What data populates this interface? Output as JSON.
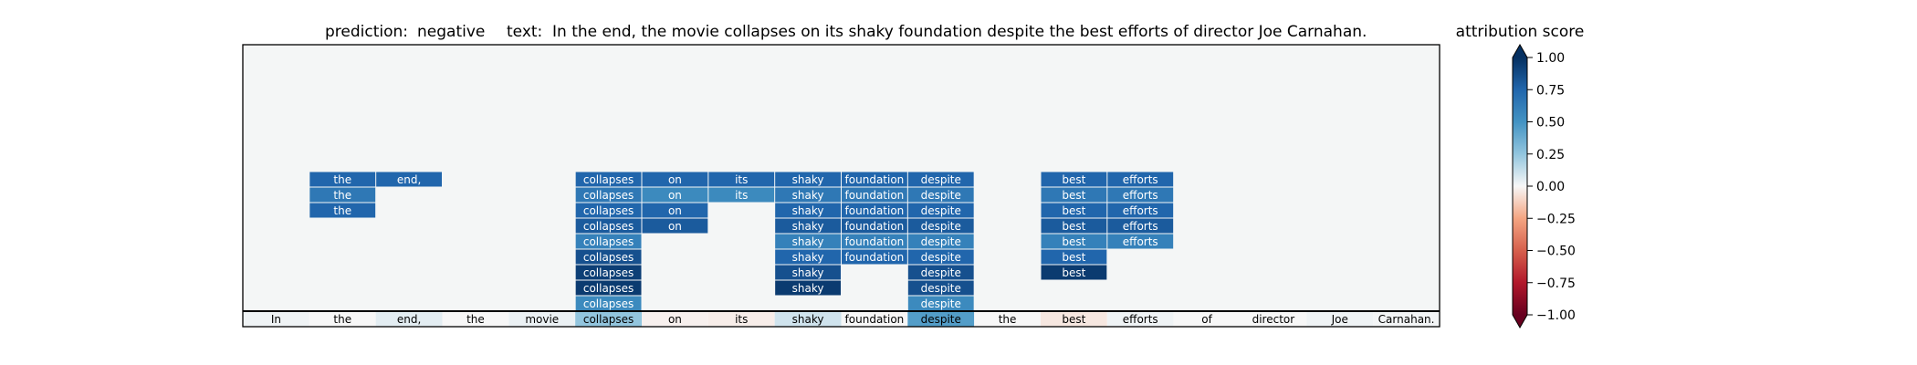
{
  "prediction": {
    "label": "prediction:",
    "value": "negative"
  },
  "text_line": {
    "label": "text:",
    "value": "In the end, the movie collapses on its shaky foundation despite the best efforts of director Joe Carnahan."
  },
  "colorbar": {
    "title": "attribution score",
    "ticks": [
      "1.00",
      "0.75",
      "0.50",
      "0.25",
      "0.00",
      "−0.25",
      "−0.50",
      "−0.75",
      "−1.00"
    ]
  },
  "chart_data": {
    "type": "heatmap",
    "tokens": [
      "In",
      "the",
      "end,",
      "the",
      "movie",
      "collapses",
      "on",
      "its",
      "shaky",
      "foundation",
      "despite",
      "the",
      "best",
      "efforts",
      "of",
      "director",
      "Joe",
      "Carnahan."
    ],
    "token_scores": [
      0.02,
      0.0,
      0.05,
      0.0,
      0.03,
      0.25,
      -0.02,
      -0.03,
      0.1,
      0.0,
      0.45,
      0.0,
      -0.05,
      0.02,
      0.0,
      0.0,
      0.02,
      0.01
    ],
    "levels": [
      {
        "tokens": [
          "collapses",
          "despite"
        ],
        "values": [
          0.55,
          0.55
        ]
      },
      {
        "tokens": [
          "collapses",
          "shaky",
          "despite"
        ],
        "values": [
          0.95,
          0.95,
          0.85
        ]
      },
      {
        "tokens": [
          "collapses",
          "shaky",
          "despite",
          "best"
        ],
        "values": [
          0.93,
          0.85,
          0.85,
          0.95
        ]
      },
      {
        "tokens": [
          "collapses",
          "shaky",
          "foundation",
          "despite",
          "best"
        ],
        "values": [
          0.85,
          0.75,
          0.75,
          0.75,
          0.75
        ]
      },
      {
        "tokens": [
          "collapses",
          "shaky",
          "foundation",
          "despite",
          "best",
          "efforts"
        ],
        "values": [
          0.6,
          0.6,
          0.6,
          0.6,
          0.6,
          0.6
        ]
      },
      {
        "tokens": [
          "collapses",
          "on",
          "shaky",
          "foundation",
          "despite",
          "best",
          "efforts"
        ],
        "values": [
          0.8,
          0.8,
          0.8,
          0.8,
          0.8,
          0.8,
          0.8
        ]
      },
      {
        "tokens": [
          "collapses",
          "on",
          "shaky",
          "foundation",
          "despite",
          "the",
          "best",
          "efforts"
        ],
        "values": [
          0.75,
          0.75,
          0.75,
          0.75,
          0.75,
          0.75,
          0.75,
          0.75
        ]
      },
      {
        "tokens": [
          "collapses",
          "on",
          "its",
          "shaky",
          "foundation",
          "despite",
          "the",
          "best",
          "efforts"
        ],
        "values": [
          0.65,
          0.55,
          0.55,
          0.65,
          0.65,
          0.65,
          0.65,
          0.65,
          0.65
        ]
      },
      {
        "tokens": [
          "end,",
          "collapses",
          "on",
          "its",
          "shaky",
          "foundation",
          "despite",
          "the",
          "best",
          "efforts"
        ],
        "values": [
          0.75,
          0.75,
          0.75,
          0.75,
          0.75,
          0.75,
          0.75,
          0.75,
          0.75,
          0.75
        ]
      }
    ],
    "colorbar_range": [
      -1.0,
      1.0
    ],
    "colormap": "RdBu",
    "background_color": "#f4f6f6"
  }
}
